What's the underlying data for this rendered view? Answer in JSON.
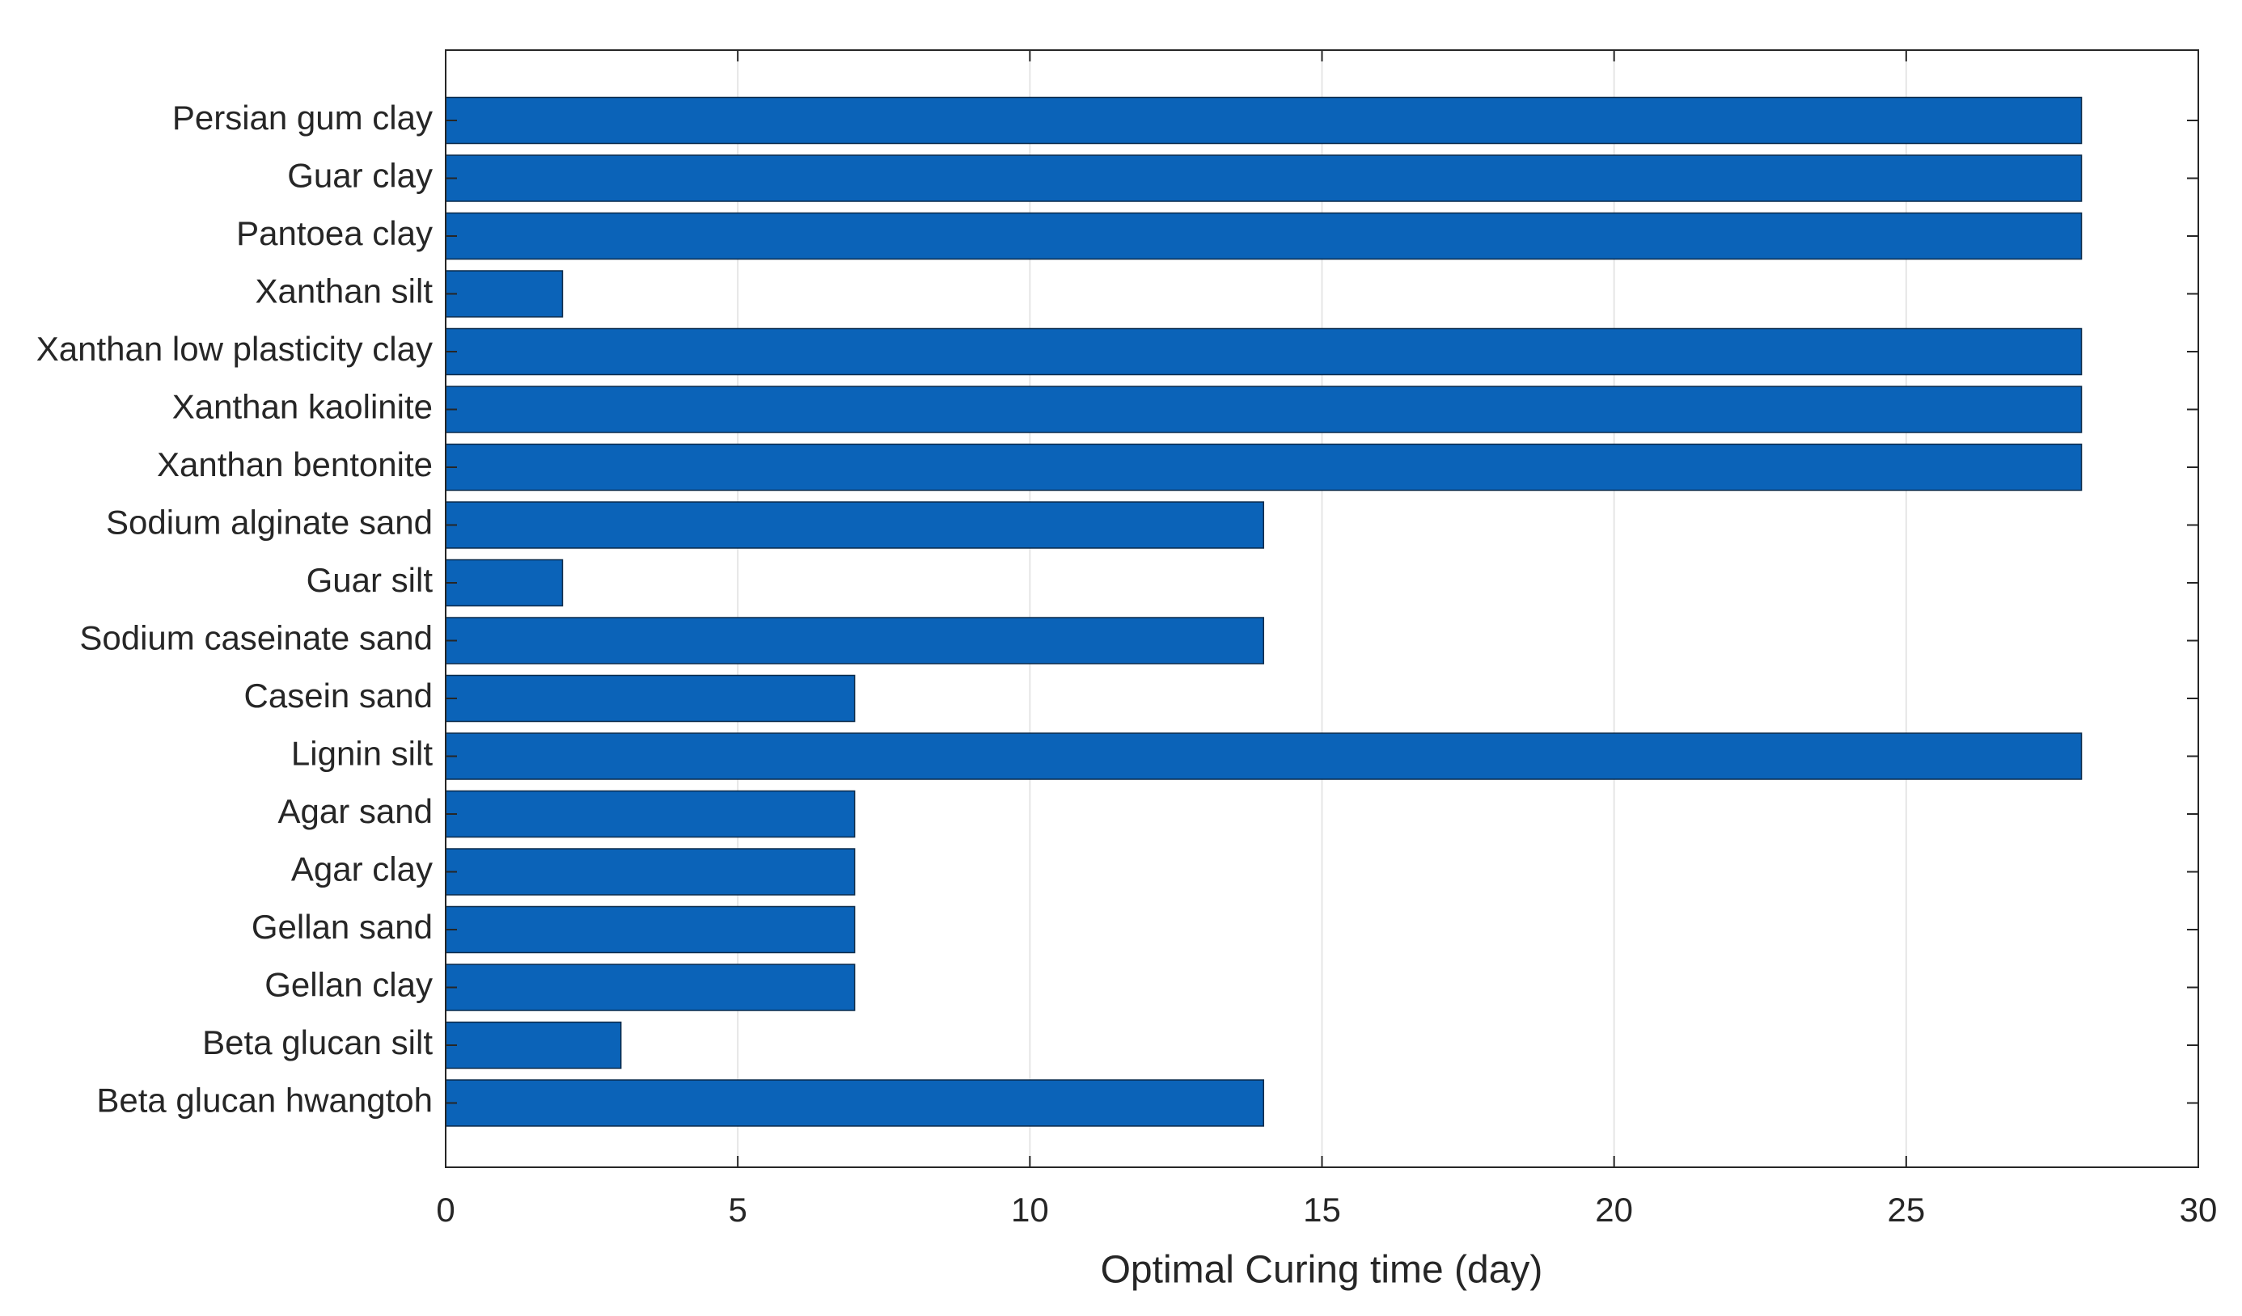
{
  "chart_data": {
    "type": "barh",
    "xlabel": "Optimal Curing time (day)",
    "categories": [
      "Persian gum clay",
      "Guar clay",
      "Pantoea clay",
      "Xanthan silt",
      "Xanthan low plasticity clay",
      "Xanthan kaolinite",
      "Xanthan bentonite",
      "Sodium alginate sand",
      "Guar silt",
      "Sodium caseinate sand",
      "Casein sand",
      "Lignin silt",
      "Agar sand",
      "Agar clay",
      "Gellan sand",
      "Gellan clay",
      "Beta glucan silt",
      "Beta glucan hwangtoh"
    ],
    "values": [
      28,
      28,
      28,
      2,
      28,
      28,
      28,
      14,
      2,
      14,
      7,
      28,
      7,
      7,
      7,
      7,
      3,
      14
    ],
    "color": "#0b63b8",
    "xlim": [
      0,
      30
    ],
    "xticks": [
      0,
      5,
      10,
      15,
      20,
      25,
      30
    ],
    "grid": true
  }
}
